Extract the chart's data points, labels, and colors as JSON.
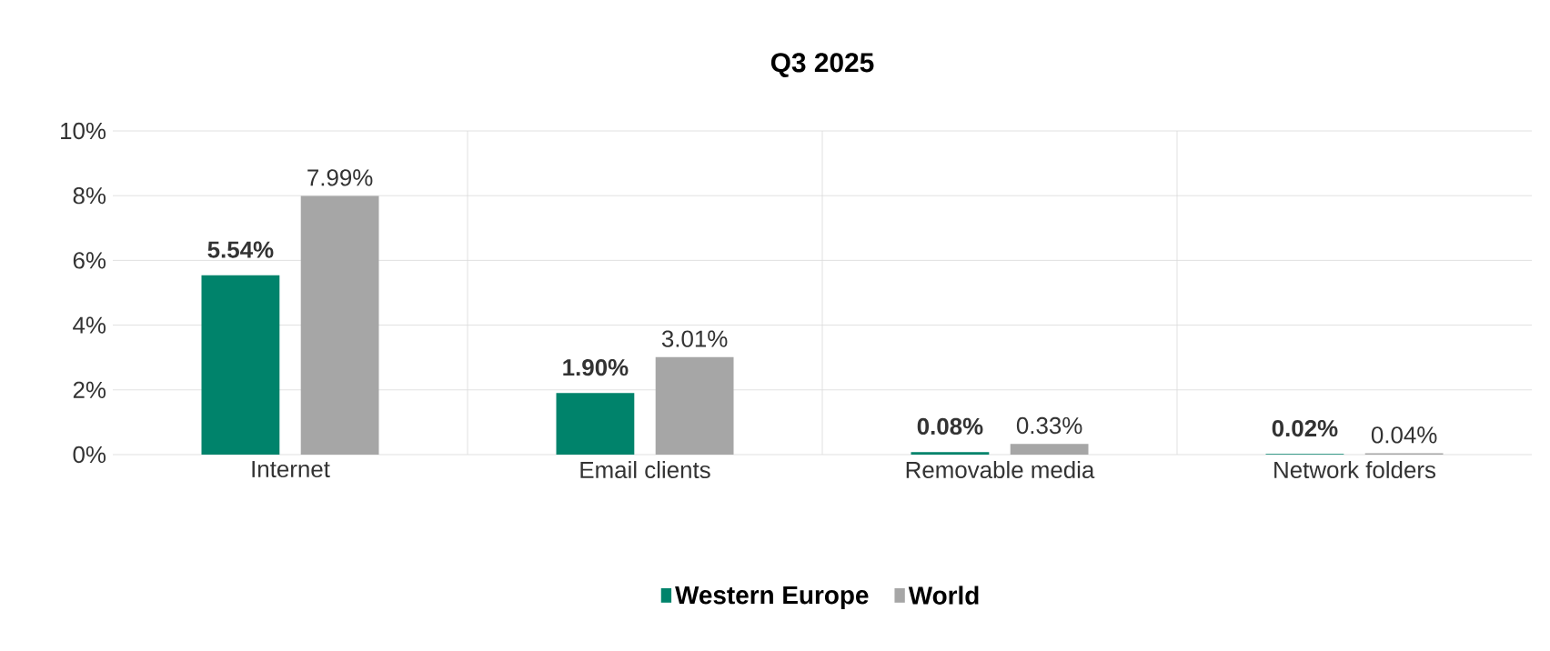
{
  "chart_data": {
    "type": "bar",
    "title": "Q3 2025",
    "categories": [
      "Internet",
      "Email clients",
      "Removable media",
      "Network folders"
    ],
    "series": [
      {
        "name": "Western Europe",
        "color": "#00836b",
        "values": [
          5.54,
          1.9,
          0.08,
          0.02
        ],
        "value_labels": [
          "5.54%",
          "1.90%",
          "0.08%",
          "0.02%"
        ]
      },
      {
        "name": "World",
        "color": "#a6a6a6",
        "values": [
          7.99,
          3.01,
          0.33,
          0.04
        ],
        "value_labels": [
          "7.99%",
          "3.01%",
          "0.33%",
          "0.04%"
        ]
      }
    ],
    "ylim": [
      0,
      10
    ],
    "yticks": [
      {
        "value": 0,
        "label": "0%"
      },
      {
        "value": 2,
        "label": "2%"
      },
      {
        "value": 4,
        "label": "4%"
      },
      {
        "value": 6,
        "label": "6%"
      },
      {
        "value": 8,
        "label": "8%"
      },
      {
        "value": 10,
        "label": "10%"
      }
    ],
    "grid": true,
    "legend": "bottom"
  }
}
